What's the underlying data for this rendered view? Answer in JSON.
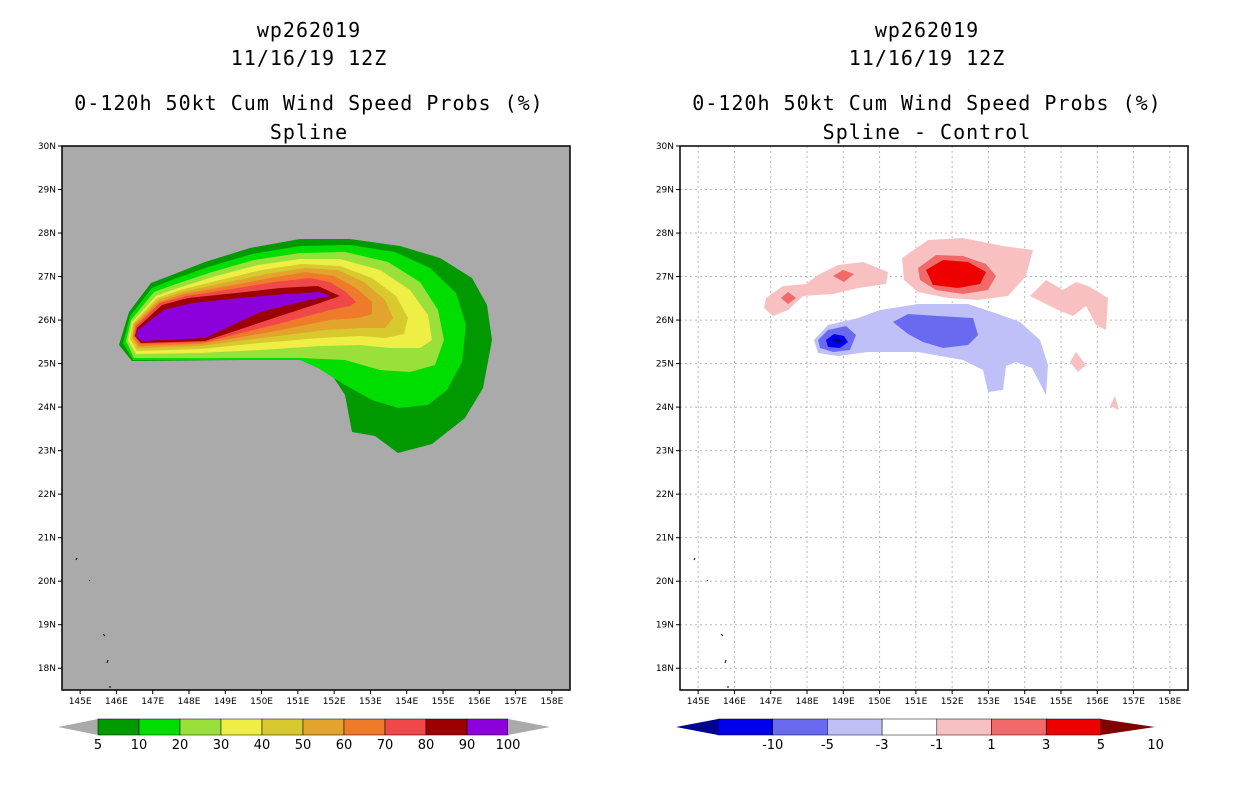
{
  "left": {
    "storm_id": "wp262019",
    "datetime": "11/16/19 12Z",
    "product": "0-120h 50kt Cum Wind Speed Probs (%)",
    "subtitle": "Spline",
    "background_color": "#aaaaaa",
    "colorbar": {
      "levels": [
        "5",
        "10",
        "20",
        "30",
        "40",
        "50",
        "60",
        "70",
        "80",
        "90",
        "100"
      ],
      "colors": [
        "#009900",
        "#00dd00",
        "#99e13a",
        "#eeee44",
        "#d8c92e",
        "#e2a42c",
        "#ef7b2a",
        "#f04848",
        "#9c0000",
        "#8c00dc"
      ],
      "end_color": "#aaaaaa"
    }
  },
  "right": {
    "storm_id": "wp262019",
    "datetime": "11/16/19 12Z",
    "product": "0-120h 50kt Cum Wind Speed Probs (%)",
    "subtitle": "Spline - Control",
    "background_color": "#ffffff",
    "colorbar": {
      "levels": [
        "-10",
        "-5",
        "-3",
        "-1",
        "1",
        "3",
        "5",
        "10"
      ],
      "colors": [
        "#000090",
        "#0000ee",
        "#6a6af0",
        "#c0c0f8",
        "#ffffff",
        "#f8c0c0",
        "#f06a6a",
        "#ee0000",
        "#800000"
      ]
    }
  },
  "axes": {
    "lat_labels": [
      "30N",
      "29N",
      "28N",
      "27N",
      "26N",
      "25N",
      "24N",
      "23N",
      "22N",
      "21N",
      "20N",
      "19N",
      "18N"
    ],
    "lon_labels": [
      "145E",
      "146E",
      "147E",
      "148E",
      "149E",
      "150E",
      "151E",
      "152E",
      "153E",
      "154E",
      "155E",
      "156E",
      "157E",
      "158E"
    ],
    "lat_range": [
      17.5,
      30
    ],
    "lon_range": [
      144.5,
      158.5
    ]
  },
  "icons": [
    "map-frame",
    "colorbar-arrow-left",
    "colorbar-arrow-right",
    "island-outline"
  ]
}
